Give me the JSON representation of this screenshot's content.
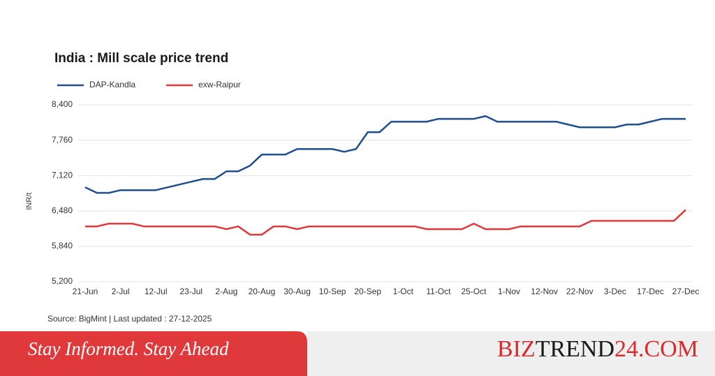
{
  "chart_data": {
    "type": "line",
    "title": "India : Mill scale price trend",
    "y_label": "INR/t",
    "source": "Source: BigMint | Last updated : 27-12-2025",
    "categories": [
      "21-Jun",
      null,
      null,
      "2-Jul",
      null,
      null,
      "12-Jul",
      null,
      null,
      "23-Jul",
      null,
      null,
      "2-Aug",
      null,
      null,
      "20-Aug",
      null,
      null,
      "30-Aug",
      null,
      null,
      "10-Sep",
      null,
      null,
      "20-Sep",
      null,
      null,
      "1-Oct",
      null,
      null,
      "11-Oct",
      null,
      null,
      "25-Oct",
      null,
      null,
      "1-Nov",
      null,
      null,
      "12-Nov",
      null,
      null,
      "22-Nov",
      null,
      null,
      "3-Dec",
      null,
      null,
      "17-Dec",
      null,
      null,
      "27-Dec"
    ],
    "series": [
      {
        "name": "DAP-Kandla",
        "color": "#1f4e8f",
        "values": [
          6907,
          6806,
          6806,
          6856,
          6856,
          6856,
          6856,
          6907,
          6957,
          7008,
          7058,
          7058,
          7197,
          7197,
          7300,
          7500,
          7500,
          7500,
          7600,
          7600,
          7600,
          7600,
          7550,
          7600,
          7905,
          7905,
          8095,
          8095,
          8095,
          8095,
          8146,
          8146,
          8146,
          8146,
          8196,
          8095,
          8095,
          8095,
          8095,
          8095,
          8095,
          8044,
          7994,
          7994,
          7994,
          7994,
          8044,
          8044,
          8095,
          8146,
          8146,
          8146
        ]
      },
      {
        "name": "exw-Raipur",
        "color": "#e0393b",
        "values": [
          6200,
          6200,
          6250,
          6250,
          6250,
          6200,
          6200,
          6200,
          6200,
          6200,
          6200,
          6200,
          6150,
          6200,
          6050,
          6050,
          6200,
          6200,
          6150,
          6200,
          6200,
          6200,
          6200,
          6200,
          6200,
          6200,
          6200,
          6200,
          6200,
          6150,
          6150,
          6150,
          6150,
          6250,
          6150,
          6150,
          6150,
          6200,
          6200,
          6200,
          6200,
          6200,
          6200,
          6300,
          6300,
          6300,
          6300,
          6300,
          6300,
          6300,
          6300,
          6500
        ]
      }
    ],
    "ylim": [
      5200,
      8400
    ],
    "yticks": [
      {
        "value": 5200,
        "label": "5,200"
      },
      {
        "value": 5840,
        "label": "5,840"
      },
      {
        "value": 6480,
        "label": "6,480"
      },
      {
        "value": 7120,
        "label": "7,120"
      },
      {
        "value": 7760,
        "label": "7,760"
      },
      {
        "value": 8400,
        "label": "8,400"
      }
    ],
    "grid": true,
    "legend": "top-left"
  },
  "banner": {
    "tagline": "Stay Informed. Stay Ahead",
    "brand": [
      "BIZ",
      "TREND",
      "24.COM"
    ]
  }
}
